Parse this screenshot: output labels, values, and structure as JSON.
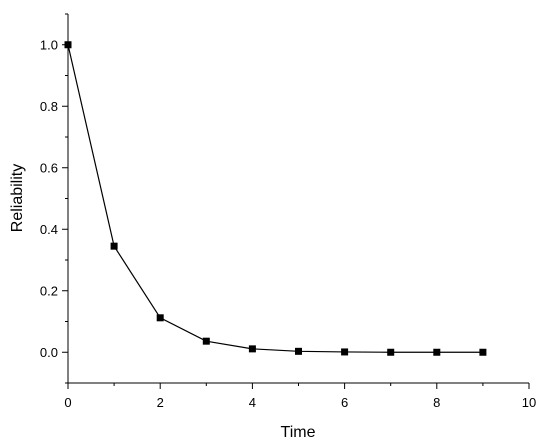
{
  "chart_data": {
    "type": "line",
    "title": "",
    "xlabel": "Time",
    "ylabel": "Reliability",
    "xlim": [
      0,
      10
    ],
    "ylim": [
      -0.1,
      1.1
    ],
    "x_ticks": [
      0,
      2,
      4,
      6,
      8,
      10
    ],
    "y_ticks": [
      0.0,
      0.2,
      0.4,
      0.6,
      0.8,
      1.0
    ],
    "x_tick_labels": [
      "0",
      "2",
      "4",
      "6",
      "8",
      "10"
    ],
    "y_tick_labels": [
      "0.0",
      "0.2",
      "0.4",
      "0.6",
      "0.8",
      "1.0"
    ],
    "grid": false,
    "legend": "none",
    "marker": "square",
    "series": [
      {
        "x": [
          0,
          1,
          2,
          3,
          4,
          5,
          6,
          7,
          8,
          9
        ],
        "y": [
          1.0,
          0.345,
          0.112,
          0.036,
          0.011,
          0.003,
          0.001,
          0.0,
          0.0,
          0.0
        ]
      }
    ]
  }
}
